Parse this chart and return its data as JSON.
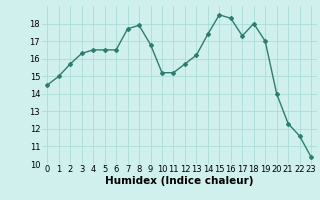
{
  "x": [
    0,
    1,
    2,
    3,
    4,
    5,
    6,
    7,
    8,
    9,
    10,
    11,
    12,
    13,
    14,
    15,
    16,
    17,
    18,
    19,
    20,
    21,
    22,
    23
  ],
  "y": [
    14.5,
    15.0,
    15.7,
    16.3,
    16.5,
    16.5,
    16.5,
    17.7,
    17.9,
    16.8,
    15.2,
    15.2,
    15.7,
    16.2,
    17.4,
    18.5,
    18.3,
    17.3,
    18.0,
    17.0,
    14.0,
    12.3,
    11.6,
    10.4
  ],
  "xlabel": "Humidex (Indice chaleur)",
  "xlim": [
    -0.5,
    23.5
  ],
  "ylim": [
    10,
    19
  ],
  "yticks": [
    10,
    11,
    12,
    13,
    14,
    15,
    16,
    17,
    18
  ],
  "xticks": [
    0,
    1,
    2,
    3,
    4,
    5,
    6,
    7,
    8,
    9,
    10,
    11,
    12,
    13,
    14,
    15,
    16,
    17,
    18,
    19,
    20,
    21,
    22,
    23
  ],
  "line_color": "#2e7d6e",
  "marker": "D",
  "marker_size": 2.0,
  "line_width": 1.0,
  "bg_color": "#cff0ec",
  "grid_color": "#aaddd8",
  "tick_label_fontsize": 6.0,
  "xlabel_fontsize": 7.5
}
